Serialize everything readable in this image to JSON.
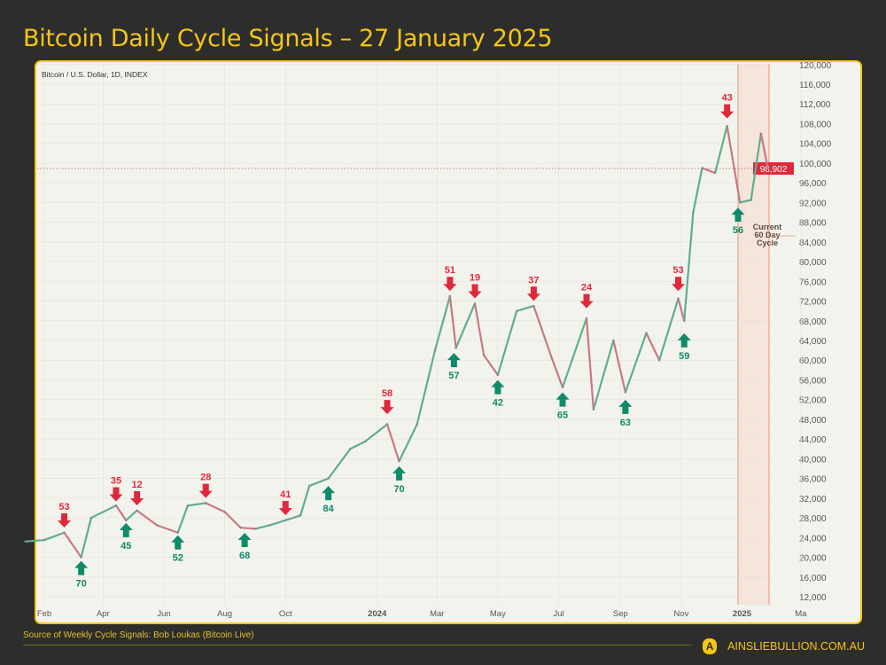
{
  "title": "Bitcoin Daily Cycle Signals – 27 January 2025",
  "symbol_label": "Bitcoin / U.S. Dollar, 1D, INDEX",
  "footer": {
    "source": "Source of Weekly Cycle Signals: Bob Loukas (Bitcoin Live)",
    "brand": "AINSLIEBULLION.COM.AU",
    "logo_letter": "A"
  },
  "colors": {
    "background": "#2d2d2b",
    "accent": "#f5c518",
    "up": "#0f8a6a",
    "down": "#e0283c",
    "cycle_shade": "#f6dccf"
  },
  "chart_data": {
    "type": "line",
    "title": "Bitcoin Daily Cycle Signals – 27 January 2025",
    "xlabel": "",
    "ylabel": "",
    "ylim": [
      12000,
      120000
    ],
    "y_ticks": [
      12000,
      16000,
      20000,
      24000,
      28000,
      32000,
      36000,
      40000,
      44000,
      48000,
      52000,
      56000,
      60000,
      64000,
      68000,
      72000,
      76000,
      80000,
      84000,
      88000,
      92000,
      96000,
      100000,
      104000,
      108000,
      112000,
      116000,
      120000
    ],
    "x_ticks": [
      {
        "label": "Feb",
        "date": "2023-02-01",
        "bold": false
      },
      {
        "label": "Apr",
        "date": "2023-04-01",
        "bold": false
      },
      {
        "label": "Jun",
        "date": "2023-06-01",
        "bold": false
      },
      {
        "label": "Aug",
        "date": "2023-08-01",
        "bold": false
      },
      {
        "label": "Oct",
        "date": "2023-10-01",
        "bold": false
      },
      {
        "label": "2024",
        "date": "2024-01-01",
        "bold": true
      },
      {
        "label": "Mar",
        "date": "2024-03-01",
        "bold": false
      },
      {
        "label": "May",
        "date": "2024-05-01",
        "bold": false
      },
      {
        "label": "Jul",
        "date": "2024-07-01",
        "bold": false
      },
      {
        "label": "Sep",
        "date": "2024-09-01",
        "bold": false
      },
      {
        "label": "Nov",
        "date": "2024-11-01",
        "bold": false
      },
      {
        "label": "2025",
        "date": "2025-01-01",
        "bold": true
      },
      {
        "label": "Ma",
        "date": "2025-03-01",
        "bold": false
      }
    ],
    "current_price": {
      "value": 98902,
      "label": "98,902"
    },
    "series": [
      {
        "values": [
          [
            "2023-01-13",
            23200
          ],
          [
            "2023-02-01",
            23500
          ],
          [
            "2023-02-21",
            25000
          ],
          [
            "2023-03-10",
            20000
          ],
          [
            "2023-03-20",
            28000
          ],
          [
            "2023-04-14",
            30500
          ],
          [
            "2023-04-24",
            27500
          ],
          [
            "2023-05-05",
            29500
          ],
          [
            "2023-05-25",
            26500
          ],
          [
            "2023-06-15",
            25000
          ],
          [
            "2023-06-25",
            30500
          ],
          [
            "2023-07-13",
            31000
          ],
          [
            "2023-08-01",
            29200
          ],
          [
            "2023-08-17",
            26000
          ],
          [
            "2023-09-01",
            25800
          ],
          [
            "2023-09-15",
            26500
          ],
          [
            "2023-10-01",
            27500
          ],
          [
            "2023-10-16",
            28500
          ],
          [
            "2023-10-25",
            34500
          ],
          [
            "2023-11-13",
            36000
          ],
          [
            "2023-12-05",
            42000
          ],
          [
            "2023-12-20",
            43500
          ],
          [
            "2024-01-11",
            47000
          ],
          [
            "2024-01-23",
            39500
          ],
          [
            "2024-02-10",
            47000
          ],
          [
            "2024-02-28",
            62000
          ],
          [
            "2024-03-14",
            73000
          ],
          [
            "2024-03-20",
            62500
          ],
          [
            "2024-04-08",
            71500
          ],
          [
            "2024-04-17",
            61000
          ],
          [
            "2024-05-01",
            57000
          ],
          [
            "2024-05-20",
            70000
          ],
          [
            "2024-06-06",
            71000
          ],
          [
            "2024-06-24",
            60500
          ],
          [
            "2024-07-05",
            54500
          ],
          [
            "2024-07-29",
            68500
          ],
          [
            "2024-08-05",
            50000
          ],
          [
            "2024-08-25",
            64000
          ],
          [
            "2024-09-06",
            53500
          ],
          [
            "2024-09-27",
            65500
          ],
          [
            "2024-10-10",
            60000
          ],
          [
            "2024-10-29",
            72500
          ],
          [
            "2024-11-04",
            68000
          ],
          [
            "2024-11-13",
            90000
          ],
          [
            "2024-11-22",
            99000
          ],
          [
            "2024-12-05",
            98000
          ],
          [
            "2024-12-17",
            107500
          ],
          [
            "2024-12-30",
            92000
          ],
          [
            "2025-01-10",
            92500
          ],
          [
            "2025-01-20",
            106000
          ],
          [
            "2025-01-27",
            98900
          ]
        ]
      }
    ],
    "sell_signals": [
      {
        "label": "53",
        "date": "2023-02-21",
        "price": 25500
      },
      {
        "label": "35",
        "date": "2023-04-14",
        "price": 30800
      },
      {
        "label": "12",
        "date": "2023-05-05",
        "price": 30000
      },
      {
        "label": "28",
        "date": "2023-07-13",
        "price": 31500
      },
      {
        "label": "41",
        "date": "2023-10-01",
        "price": 28000
      },
      {
        "label": "58",
        "date": "2024-01-11",
        "price": 48500
      },
      {
        "label": "51",
        "date": "2024-03-14",
        "price": 73500
      },
      {
        "label": "19",
        "date": "2024-04-08",
        "price": 72000
      },
      {
        "label": "37",
        "date": "2024-06-06",
        "price": 71500
      },
      {
        "label": "24",
        "date": "2024-07-29",
        "price": 70000
      },
      {
        "label": "53",
        "date": "2024-10-29",
        "price": 73500
      },
      {
        "label": "43",
        "date": "2024-12-17",
        "price": 108500
      }
    ],
    "buy_signals": [
      {
        "label": "70",
        "date": "2023-03-10",
        "price": 19800
      },
      {
        "label": "45",
        "date": "2023-04-24",
        "price": 27500
      },
      {
        "label": "52",
        "date": "2023-06-15",
        "price": 25000
      },
      {
        "label": "68",
        "date": "2023-08-21",
        "price": 25500
      },
      {
        "label": "84",
        "date": "2023-11-13",
        "price": 35000
      },
      {
        "label": "70",
        "date": "2024-01-23",
        "price": 39000
      },
      {
        "label": "57",
        "date": "2024-03-18",
        "price": 62000
      },
      {
        "label": "42",
        "date": "2024-05-01",
        "price": 56500
      },
      {
        "label": "65",
        "date": "2024-07-05",
        "price": 54000
      },
      {
        "label": "63",
        "date": "2024-09-06",
        "price": 52500
      },
      {
        "label": "59",
        "date": "2024-11-04",
        "price": 66000
      },
      {
        "label": "56",
        "date": "2024-12-28",
        "price": 91500
      }
    ],
    "cycle_annotation": {
      "label_lines": [
        "Current",
        "60 Day",
        "Cycle"
      ],
      "start": "2024-12-28",
      "end": "2025-02-01"
    }
  }
}
